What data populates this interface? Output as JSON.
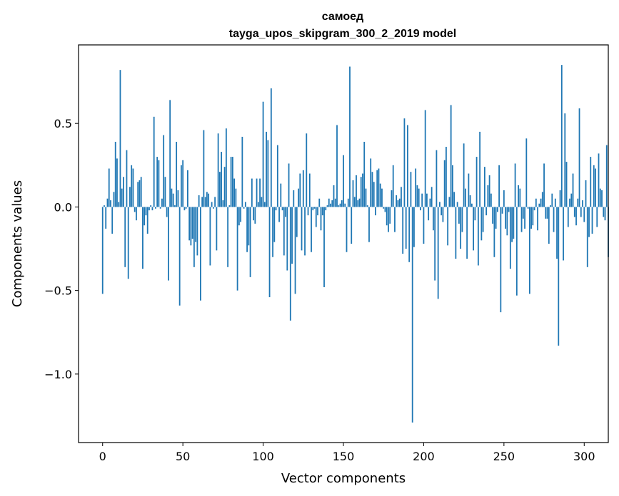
{
  "chart_data": {
    "type": "bar",
    "title": "самоед",
    "subtitle": "tayga_upos_skipgram_300_2_2019 model",
    "xlabel": "Vector components",
    "ylabel": "Components values",
    "xlim": [
      -15,
      315
    ],
    "ylim": [
      -1.41,
      0.97
    ],
    "xticks": [
      0,
      50,
      100,
      150,
      200,
      250,
      300
    ],
    "xtick_labels": [
      "0",
      "50",
      "100",
      "150",
      "200",
      "250",
      "300"
    ],
    "yticks": [
      -1.0,
      -0.5,
      0.0,
      0.5
    ],
    "ytick_labels": [
      "−1.0",
      "−0.5",
      "0.0",
      "0.5"
    ],
    "grid": false,
    "color": "#1f77b4",
    "values": [
      -0.52,
      0.01,
      -0.13,
      0.05,
      0.23,
      0.04,
      -0.16,
      0.09,
      0.39,
      0.29,
      0.03,
      0.82,
      0.11,
      0.18,
      -0.36,
      0.34,
      -0.43,
      0.12,
      0.25,
      0.23,
      -0.03,
      -0.08,
      0.15,
      0.16,
      0.18,
      -0.37,
      -0.11,
      -0.05,
      -0.16,
      -0.02,
      0.01,
      -0.02,
      0.54,
      -0.01,
      0.3,
      0.28,
      -0.01,
      0.05,
      0.43,
      0.18,
      -0.06,
      -0.44,
      0.64,
      0.11,
      0.08,
      0.01,
      0.39,
      0.1,
      -0.59,
      0.25,
      0.28,
      -0.02,
      -0.01,
      0.22,
      -0.2,
      -0.23,
      -0.19,
      -0.36,
      -0.21,
      -0.29,
      0.07,
      -0.56,
      0.06,
      0.46,
      0.06,
      0.09,
      0.08,
      -0.35,
      0.03,
      -0.01,
      0.06,
      -0.26,
      0.44,
      0.21,
      0.33,
      0.04,
      0.24,
      0.47,
      -0.36,
      0.01,
      0.3,
      0.3,
      0.17,
      0.11,
      -0.5,
      -0.11,
      -0.09,
      0.42,
      -0.01,
      0.03,
      -0.27,
      -0.23,
      -0.42,
      0.17,
      -0.08,
      -0.1,
      0.17,
      0.03,
      0.17,
      0.06,
      0.63,
      0.03,
      0.45,
      0.4,
      -0.54,
      0.71,
      -0.3,
      -0.21,
      -0.02,
      0.37,
      -0.09,
      0.14,
      -0.02,
      -0.29,
      -0.06,
      -0.38,
      0.26,
      -0.68,
      -0.34,
      0.1,
      -0.52,
      -0.18,
      0.11,
      0.2,
      -0.26,
      0.22,
      -0.29,
      0.44,
      -0.05,
      0.2,
      -0.27,
      -0.02,
      -0.01,
      -0.12,
      -0.05,
      0.05,
      -0.14,
      -0.05,
      -0.48,
      -0.02,
      0.01,
      0.05,
      0.02,
      0.04,
      0.13,
      0.05,
      0.49,
      0.01,
      0.02,
      0.04,
      0.31,
      0.02,
      -0.27,
      0.05,
      0.84,
      -0.22,
      0.16,
      0.06,
      0.19,
      0.04,
      0.05,
      0.18,
      0.2,
      0.39,
      0.11,
      0.01,
      -0.21,
      0.29,
      0.21,
      0.15,
      -0.05,
      0.22,
      0.23,
      0.14,
      0.11,
      -0.01,
      -0.03,
      -0.11,
      -0.15,
      -0.1,
      0.1,
      0.25,
      -0.15,
      0.07,
      0.04,
      0.05,
      0.12,
      -0.28,
      0.53,
      -0.25,
      0.49,
      -0.33,
      0.21,
      -1.29,
      -0.24,
      0.23,
      0.13,
      0.11,
      -0.02,
      0.08,
      -0.22,
      0.58,
      0.08,
      -0.08,
      0.05,
      0.12,
      -0.14,
      -0.44,
      0.34,
      -0.55,
      0.03,
      -0.05,
      -0.09,
      0.28,
      0.36,
      -0.23,
      0.06,
      0.61,
      0.25,
      0.09,
      -0.31,
      0.03,
      -0.1,
      -0.25,
      -0.15,
      0.38,
      0.11,
      -0.31,
      0.2,
      0.07,
      0.02,
      -0.26,
      -0.08,
      0.3,
      -0.35,
      0.45,
      -0.2,
      -0.15,
      0.24,
      -0.05,
      0.13,
      0.19,
      0.08,
      -0.1,
      -0.3,
      -0.13,
      -0.03,
      0.25,
      -0.63,
      -0.04,
      0.1,
      -0.13,
      -0.17,
      -0.03,
      -0.37,
      -0.21,
      -0.19,
      0.26,
      -0.53,
      0.13,
      0.11,
      -0.15,
      -0.07,
      -0.13,
      0.41,
      -0.01,
      -0.52,
      -0.13,
      -0.11,
      -0.02,
      0.05,
      -0.14,
      0.02,
      0.05,
      0.09,
      0.26,
      -0.07,
      -0.07,
      -0.22,
      0.01,
      0.08,
      -0.15,
      0.05,
      -0.31,
      -0.83,
      0.1,
      0.85,
      -0.32,
      0.56,
      0.27,
      -0.12,
      0.05,
      0.08,
      0.2,
      -0.06,
      -0.11,
      0.05,
      0.59,
      -0.06,
      0.04,
      -0.09,
      0.16,
      -0.36,
      -0.18,
      0.3,
      -0.16,
      0.25,
      0.23,
      -0.12,
      0.32,
      0.11,
      0.1,
      -0.06,
      -0.08,
      0.37,
      -0.3
    ]
  }
}
